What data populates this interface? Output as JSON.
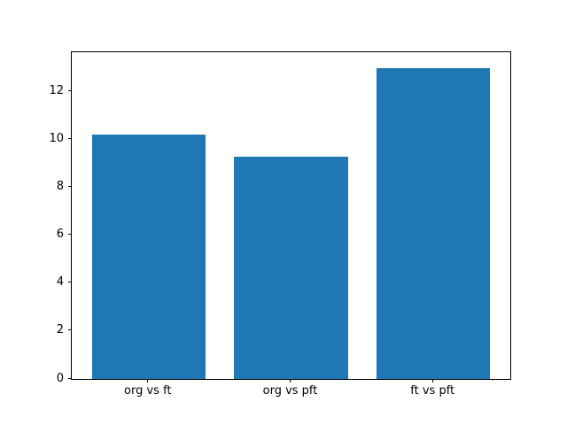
{
  "chart_data": {
    "type": "bar",
    "categories": [
      "org vs ft",
      "org vs pft",
      "ft vs pft"
    ],
    "values": [
      10.2,
      9.3,
      13.0
    ],
    "title": "",
    "xlabel": "",
    "ylabel": "",
    "yticks": [
      0,
      2,
      4,
      6,
      8,
      10,
      12
    ],
    "ylim": [
      0,
      13.65
    ],
    "xlim": [
      -0.54,
      2.54
    ],
    "bar_width": 0.8,
    "bar_color": "#1f77b4",
    "grid": false,
    "legend_position": "none",
    "axis_color": "#000000",
    "background_color": "#ffffff"
  }
}
